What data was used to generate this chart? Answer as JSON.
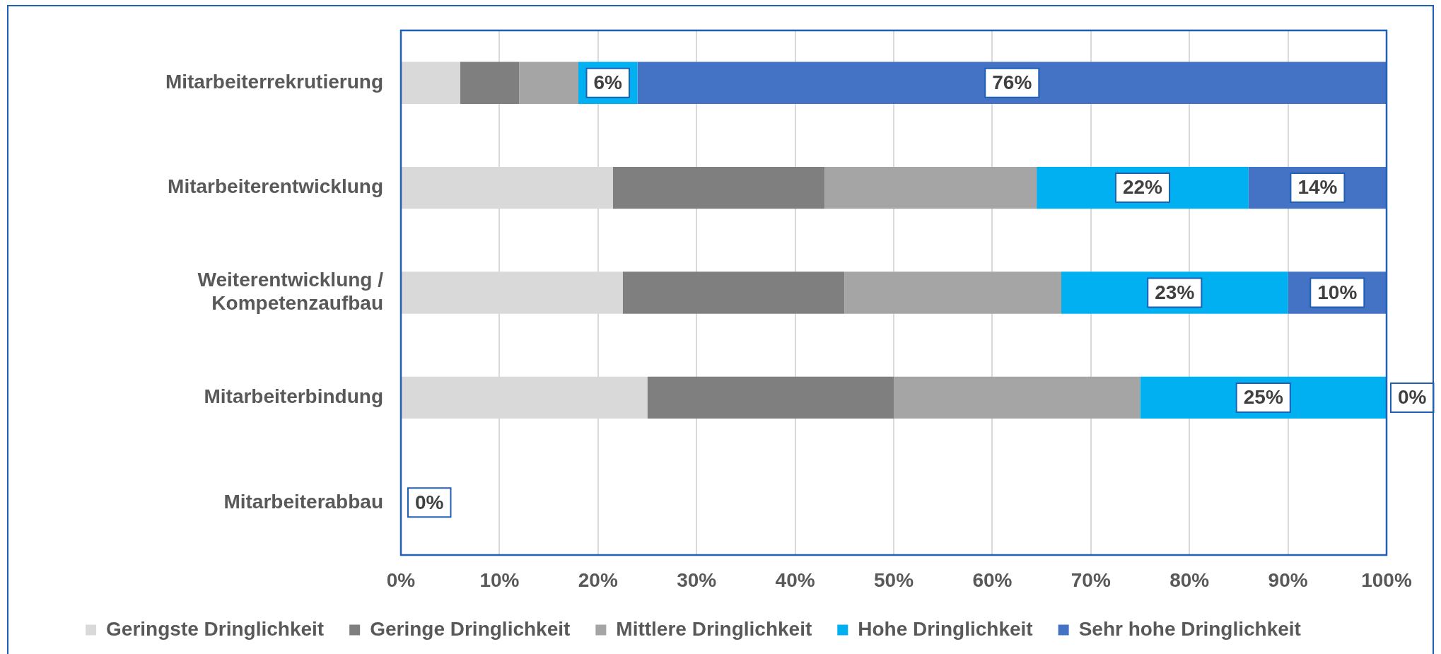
{
  "chart_data": {
    "type": "bar",
    "orientation": "horizontal",
    "stacked": true,
    "categories": [
      "Mitarbeiterrekrutierung",
      "Mitarbeiterentwicklung",
      "Weiterentwicklung / Kompetenzaufbau",
      "Mitarbeiterbindung",
      "Mitarbeiterabbau"
    ],
    "series": [
      {
        "name": "Geringste Dringlichkeit",
        "color": "#d9d9d9",
        "values": [
          6,
          21.5,
          22.5,
          25,
          0
        ]
      },
      {
        "name": "Geringe Dringlichkeit",
        "color": "#7f7f7f",
        "values": [
          6,
          21.5,
          22.5,
          25,
          0
        ]
      },
      {
        "name": "Mittlere Dringlichkeit",
        "color": "#a5a5a5",
        "values": [
          6,
          21.5,
          22,
          25,
          0
        ]
      },
      {
        "name": "Hohe Dringlichkeit",
        "color": "#00b0f0",
        "values": [
          6,
          21.5,
          23,
          25,
          0
        ],
        "value_labels": [
          "6%",
          "22%",
          "23%",
          "25%",
          null
        ]
      },
      {
        "name": "Sehr hohe Dringlichkeit",
        "color": "#4472c4",
        "values": [
          76,
          14,
          10,
          0,
          0
        ],
        "value_labels": [
          "76%",
          "14%",
          "10%",
          "0%",
          "0%"
        ]
      }
    ],
    "xlim": [
      0,
      100
    ],
    "xticks": [
      {
        "value": 0,
        "label": "0%"
      },
      {
        "value": 10,
        "label": "10%"
      },
      {
        "value": 20,
        "label": "20%"
      },
      {
        "value": 30,
        "label": "30%"
      },
      {
        "value": 40,
        "label": "40%"
      },
      {
        "value": 50,
        "label": "50%"
      },
      {
        "value": 60,
        "label": "60%"
      },
      {
        "value": 70,
        "label": "70%"
      },
      {
        "value": 80,
        "label": "80%"
      },
      {
        "value": 90,
        "label": "90%"
      },
      {
        "value": 100,
        "label": "100%"
      }
    ],
    "grid": "x",
    "legend": "bottom"
  }
}
